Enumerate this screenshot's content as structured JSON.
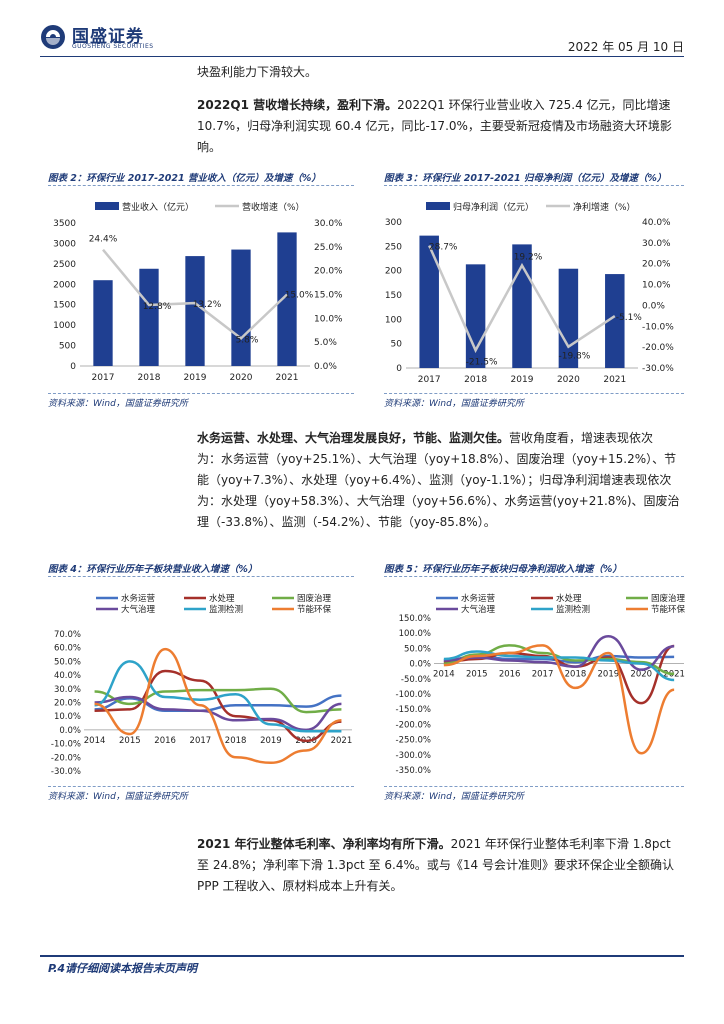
{
  "header": {
    "logo_name": "国盛证券",
    "logo_sub": "GUOSHENG SECURITIES",
    "date": "2022 年 05 月 10 日"
  },
  "paragraphs": {
    "p0": "块盈利能力下滑较大。",
    "p1_bold": "2022Q1 营收增长持续，盈利下滑。",
    "p1_l1": "2022Q1 环保行业营业收入 725.4 亿元，同比增速",
    "p1_l2": "10.7%，归母净利润实现 60.4 亿元，同比-17.0%，主要受新冠疫情及市场融资大环境影",
    "p1_l3": "响。",
    "p2_bold": "水务运营、水处理、大气治理发展良好，节能、监测欠佳。",
    "p2_l1": "营收角度看，增速表现依次",
    "p2_l2": "为：水务运营（yoy+25.1%）、大气治理（yoy+18.8%）、固废治理（yoy+15.2%）、节",
    "p2_l3": "能（yoy+7.3%）、水处理（yoy+6.4%）、监测（yoy-1.1%）；归母净利润增速表现依次",
    "p2_l4": "为：水处理（yoy+58.3%）、大气治理（yoy+56.6%）、水务运营(yoy+21.8%)、固废治",
    "p2_l5": "理（-33.8%）、监测（-54.2%）、节能（yoy-85.8%）。",
    "p3_bold": "2021 年行业整体毛利率、净利率均有所下滑。",
    "p3_l1": "2021 年环保行业整体毛利率下滑 1.8pct",
    "p3_l2": "至 24.8%；净利率下滑 1.3pct 至 6.4%。或与《14 号会计准则》要求环保企业全额确认",
    "p3_l3": "PPP 工程收入、原材料成本上升有关。"
  },
  "captions": {
    "fig2": "图表 2：环保行业 2017-2021 营业收入（亿元）及增速（%）",
    "fig3": "图表 3：环保行业 2017-2021 归母净利润（亿元）及增速（%）",
    "fig4": "图表 4：环保行业历年子板块营业收入增速（%）",
    "fig5": "图表 5：环保行业历年子板块归母净利润收入增速（%）",
    "source": "资料来源：Wind，国盛证券研究所"
  },
  "footer": "P.4请仔细阅读本报告末页声明",
  "colors": {
    "brand": "#1f3b78",
    "bar": "#1f3f91",
    "line_gray": "#c8c8c8",
    "s_water_ops": "#4472c4",
    "s_water_treat": "#a5302a",
    "s_solid": "#70ad47",
    "s_air": "#6a4a9c",
    "s_monitor": "#2ea3c9",
    "s_energy": "#ed7d31"
  },
  "chart_data": [
    {
      "id": "fig2",
      "type": "bar+line",
      "categories": [
        "2017",
        "2018",
        "2019",
        "2020",
        "2021"
      ],
      "series": [
        {
          "name": "营业收入（亿元）",
          "type": "bar",
          "axis": "left",
          "values": [
            2100,
            2380,
            2690,
            2850,
            3270
          ]
        },
        {
          "name": "营收增速（%）",
          "type": "line",
          "axis": "right",
          "values": [
            24.4,
            12.8,
            13.2,
            5.8,
            15.0
          ],
          "labels": [
            "24.4%",
            "12.8%",
            "13.2%",
            "5.8%",
            "15.0%"
          ]
        }
      ],
      "ylim_left": [
        0,
        3500
      ],
      "yticks_left": [
        0,
        500,
        1000,
        1500,
        2000,
        2500,
        3000,
        3500
      ],
      "ylim_right": [
        0,
        30
      ],
      "yticks_right": [
        "0.0%",
        "5.0%",
        "10.0%",
        "15.0%",
        "20.0%",
        "25.0%",
        "30.0%"
      ],
      "legend": "top"
    },
    {
      "id": "fig3",
      "type": "bar+line",
      "categories": [
        "2017",
        "2018",
        "2019",
        "2020",
        "2021"
      ],
      "series": [
        {
          "name": "归母净利润（亿元）",
          "type": "bar",
          "axis": "left",
          "values": [
            272,
            213,
            254,
            204,
            193
          ]
        },
        {
          "name": "净利增速（%）",
          "type": "line",
          "axis": "right",
          "values": [
            28.7,
            -21.5,
            19.2,
            -19.8,
            -5.1
          ],
          "labels": [
            "28.7%",
            "-21.5%",
            "19.2%",
            "-19.8%",
            "-5.1%"
          ]
        }
      ],
      "ylim_left": [
        0,
        300
      ],
      "yticks_left": [
        0,
        50,
        100,
        150,
        200,
        250,
        300
      ],
      "ylim_right": [
        -30,
        40
      ],
      "yticks_right": [
        "-30.0%",
        "-20.0%",
        "-10.0%",
        "0.0%",
        "10.0%",
        "20.0%",
        "30.0%",
        "40.0%"
      ],
      "legend": "top"
    },
    {
      "id": "fig4",
      "type": "line",
      "categories": [
        "2014",
        "2015",
        "2016",
        "2017",
        "2018",
        "2019",
        "2020",
        "2021"
      ],
      "ylim": [
        -30,
        70
      ],
      "yticks": [
        "-30.0%",
        "-20.0%",
        "-10.0%",
        "0.0%",
        "10.0%",
        "20.0%",
        "30.0%",
        "40.0%",
        "50.0%",
        "60.0%",
        "70.0%"
      ],
      "series": [
        {
          "name": "水务运营",
          "color": "s_water_ops",
          "values": [
            15,
            23,
            14,
            14,
            18,
            18,
            17,
            25
          ]
        },
        {
          "name": "水处理",
          "color": "s_water_treat",
          "values": [
            14,
            15,
            43,
            36,
            10,
            7,
            -8,
            6
          ]
        },
        {
          "name": "固废治理",
          "color": "s_solid",
          "values": [
            28,
            19,
            28,
            29,
            29,
            30,
            13,
            15
          ]
        },
        {
          "name": "大气治理",
          "color": "s_air",
          "values": [
            20,
            24,
            15,
            14,
            7,
            8,
            0,
            19
          ]
        },
        {
          "name": "监测检测",
          "color": "s_monitor",
          "values": [
            18,
            50,
            24,
            22,
            26,
            4,
            -1,
            -1
          ]
        },
        {
          "name": "节能环保",
          "color": "s_energy",
          "values": [
            19,
            -3,
            59,
            18,
            -20,
            -24,
            -15,
            7
          ]
        }
      ],
      "legend": "top"
    },
    {
      "id": "fig5",
      "type": "line",
      "categories": [
        "2014",
        "2015",
        "2016",
        "2017",
        "2018",
        "2019",
        "2020",
        "2021"
      ],
      "ylim": [
        -350,
        150
      ],
      "yticks": [
        "-350.0%",
        "-300.0%",
        "-250.0%",
        "-200.0%",
        "-150.0%",
        "-100.0%",
        "-50.0%",
        "0.0%",
        "50.0%",
        "100.0%",
        "150.0%"
      ],
      "series": [
        {
          "name": "水务运营",
          "color": "s_water_ops",
          "values": [
            10,
            25,
            15,
            15,
            5,
            25,
            20,
            22
          ]
        },
        {
          "name": "水处理",
          "color": "s_water_treat",
          "values": [
            5,
            15,
            35,
            25,
            -10,
            20,
            -130,
            58
          ]
        },
        {
          "name": "固废治理",
          "color": "s_solid",
          "values": [
            0,
            30,
            60,
            35,
            10,
            15,
            5,
            -34
          ]
        },
        {
          "name": "大气治理",
          "color": "s_air",
          "values": [
            10,
            20,
            10,
            5,
            -10,
            90,
            -20,
            57
          ]
        },
        {
          "name": "监测检测",
          "color": "s_monitor",
          "values": [
            15,
            40,
            25,
            20,
            20,
            10,
            0,
            -54
          ]
        },
        {
          "name": "节能环保",
          "color": "s_energy",
          "values": [
            -5,
            25,
            35,
            60,
            -80,
            35,
            -295,
            -86
          ]
        }
      ],
      "legend": "top"
    }
  ]
}
